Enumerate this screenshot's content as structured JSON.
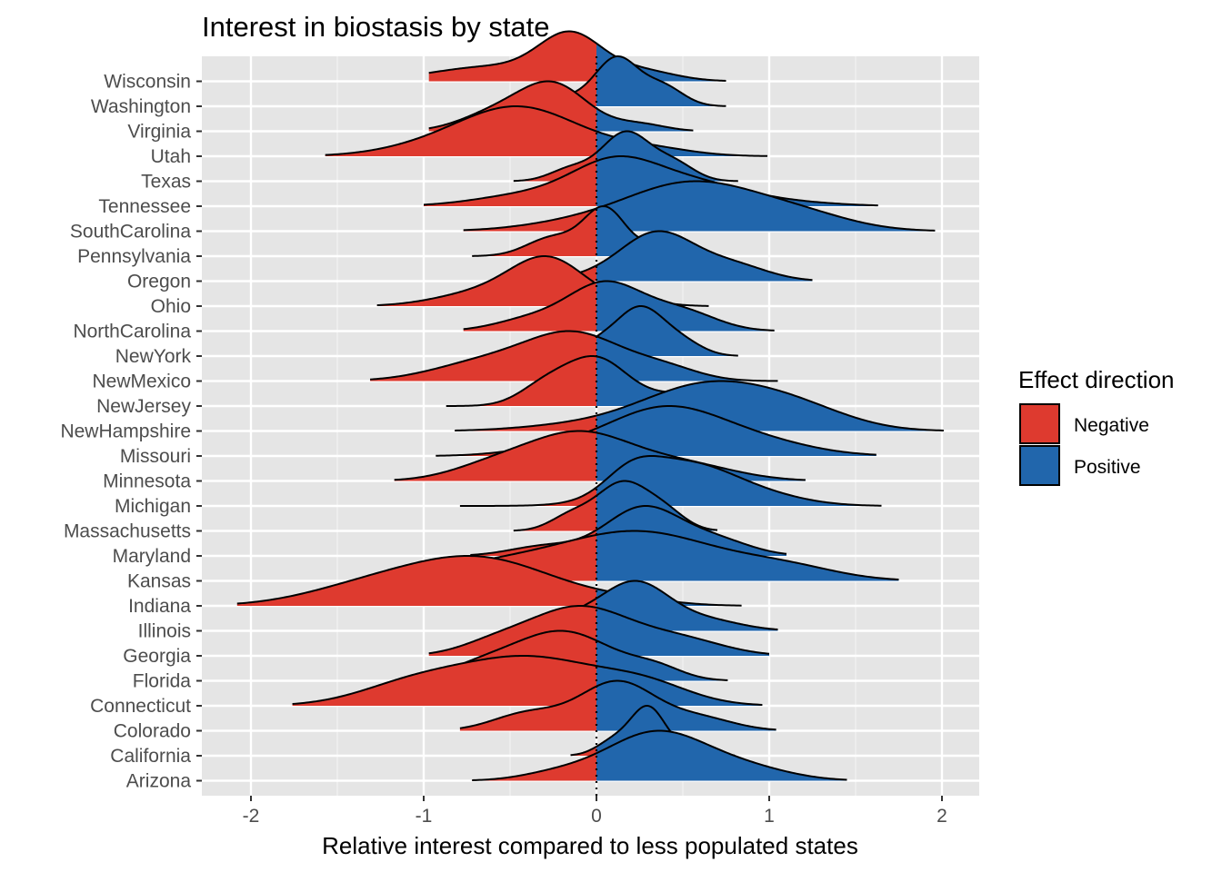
{
  "chart_data": {
    "type": "ridgeline",
    "title": "Interest in biostasis by state",
    "xlabel": "Relative interest compared to less populated states",
    "ylabel": "",
    "xlim": [
      -2.3,
      2.2
    ],
    "x_ticks": [
      -2,
      -1,
      0,
      1,
      2
    ],
    "x_tick_labels": [
      "-2",
      "-1",
      "0",
      "1",
      "2"
    ],
    "reference_line_x": 0,
    "grid": true,
    "legend": {
      "title": "Effect direction",
      "position": "right",
      "entries": [
        {
          "label": "Negative",
          "color": "#de3a2f"
        },
        {
          "label": "Positive",
          "color": "#2166ac"
        }
      ]
    },
    "colors": {
      "negative": "#de3a2f",
      "positive": "#2166ac",
      "panel": "#e5e5e5",
      "grid": "#ffffff",
      "tick_text": "#4d4d4d"
    },
    "states": [
      {
        "name": "Wisconsin",
        "min": -0.97,
        "max": 0.75,
        "peaks": [
          [
            -0.6,
            0.35,
            0.35
          ],
          [
            -0.15,
            0.18,
            1.0
          ],
          [
            0.25,
            0.2,
            0.25
          ]
        ]
      },
      {
        "name": "Washington",
        "min": -0.5,
        "max": 0.75,
        "peaks": [
          [
            0.12,
            0.12,
            1.0
          ],
          [
            0.38,
            0.12,
            0.45
          ],
          [
            -0.15,
            0.2,
            0.2
          ]
        ]
      },
      {
        "name": "Virginia",
        "min": -0.97,
        "max": 0.56,
        "peaks": [
          [
            -0.25,
            0.2,
            1.0
          ],
          [
            -0.6,
            0.2,
            0.35
          ],
          [
            0.25,
            0.15,
            0.15
          ]
        ]
      },
      {
        "name": "Utah",
        "min": -1.57,
        "max": 0.99,
        "peaks": [
          [
            -0.45,
            0.35,
            1.0
          ],
          [
            -1.0,
            0.3,
            0.12
          ],
          [
            0.3,
            0.25,
            0.15
          ]
        ]
      },
      {
        "name": "Texas",
        "min": -0.48,
        "max": 0.82,
        "peaks": [
          [
            0.17,
            0.14,
            1.0
          ],
          [
            0.45,
            0.12,
            0.35
          ],
          [
            -0.15,
            0.12,
            0.25
          ]
        ]
      },
      {
        "name": "Tennessee",
        "min": -1.0,
        "max": 1.63,
        "peaks": [
          [
            0.1,
            0.25,
            0.9
          ],
          [
            0.55,
            0.3,
            0.5
          ],
          [
            -0.4,
            0.3,
            0.25
          ],
          [
            1.1,
            0.3,
            0.08
          ]
        ]
      },
      {
        "name": "SouthCarolina",
        "min": -0.77,
        "max": 1.96,
        "peaks": [
          [
            0.55,
            0.4,
            1.0
          ],
          [
            1.2,
            0.3,
            0.25
          ],
          [
            -0.2,
            0.3,
            0.1
          ]
        ]
      },
      {
        "name": "Pennsylvania",
        "min": -0.72,
        "max": 0.7,
        "peaks": [
          [
            0.05,
            0.12,
            1.0
          ],
          [
            -0.25,
            0.15,
            0.4
          ],
          [
            0.4,
            0.12,
            0.3
          ]
        ]
      },
      {
        "name": "Oregon",
        "min": -0.45,
        "max": 1.25,
        "peaks": [
          [
            0.35,
            0.22,
            1.0
          ],
          [
            0.8,
            0.2,
            0.3
          ],
          [
            -0.1,
            0.15,
            0.05
          ]
        ]
      },
      {
        "name": "Ohio",
        "min": -1.27,
        "max": 0.65,
        "peaks": [
          [
            -0.28,
            0.22,
            1.0
          ],
          [
            -0.7,
            0.25,
            0.25
          ],
          [
            0.25,
            0.15,
            0.1
          ]
        ]
      },
      {
        "name": "NorthCarolina",
        "min": -0.77,
        "max": 1.03,
        "peaks": [
          [
            0.05,
            0.22,
            0.9
          ],
          [
            0.5,
            0.2,
            0.35
          ],
          [
            -0.4,
            0.2,
            0.2
          ]
        ]
      },
      {
        "name": "NewYork",
        "min": -0.32,
        "max": 0.82,
        "peaks": [
          [
            0.25,
            0.14,
            1.0
          ],
          [
            0.5,
            0.12,
            0.25
          ],
          [
            0.0,
            0.1,
            0.2
          ]
        ]
      },
      {
        "name": "NewMexico",
        "min": -1.31,
        "max": 1.05,
        "peaks": [
          [
            -0.12,
            0.28,
            1.0
          ],
          [
            -0.65,
            0.3,
            0.4
          ],
          [
            0.4,
            0.2,
            0.25
          ]
        ]
      },
      {
        "name": "NewJersey",
        "min": -0.87,
        "max": 0.98,
        "peaks": [
          [
            0.0,
            0.18,
            1.0
          ],
          [
            -0.3,
            0.15,
            0.4
          ],
          [
            0.5,
            0.2,
            0.25
          ]
        ]
      },
      {
        "name": "NewHampshire",
        "min": -0.82,
        "max": 2.01,
        "peaks": [
          [
            0.65,
            0.4,
            1.0
          ],
          [
            1.2,
            0.3,
            0.3
          ],
          [
            -0.2,
            0.3,
            0.08
          ]
        ]
      },
      {
        "name": "Missouri",
        "min": -0.93,
        "max": 1.62,
        "peaks": [
          [
            0.4,
            0.35,
            1.0
          ],
          [
            1.0,
            0.3,
            0.2
          ],
          [
            -0.3,
            0.25,
            0.1
          ]
        ]
      },
      {
        "name": "Minnesota",
        "min": -1.17,
        "max": 1.21,
        "peaks": [
          [
            -0.1,
            0.3,
            1.0
          ],
          [
            -0.6,
            0.25,
            0.3
          ],
          [
            0.5,
            0.3,
            0.35
          ]
        ]
      },
      {
        "name": "Michigan",
        "min": -0.79,
        "max": 1.65,
        "peaks": [
          [
            0.5,
            0.3,
            1.0
          ],
          [
            0.2,
            0.15,
            0.45
          ],
          [
            1.0,
            0.25,
            0.15
          ]
        ]
      },
      {
        "name": "Massachusetts",
        "min": -0.48,
        "max": 0.7,
        "peaks": [
          [
            0.15,
            0.15,
            1.0
          ],
          [
            0.4,
            0.12,
            0.35
          ],
          [
            -0.15,
            0.12,
            0.3
          ]
        ]
      },
      {
        "name": "Maryland",
        "min": -0.73,
        "max": 1.1,
        "peaks": [
          [
            0.27,
            0.22,
            1.0
          ],
          [
            0.7,
            0.2,
            0.3
          ],
          [
            -0.3,
            0.2,
            0.2
          ]
        ]
      },
      {
        "name": "Kansas",
        "min": -1.22,
        "max": 1.75,
        "peaks": [
          [
            0.25,
            0.45,
            1.0
          ],
          [
            -0.6,
            0.4,
            0.3
          ],
          [
            1.1,
            0.3,
            0.25
          ]
        ]
      },
      {
        "name": "Indiana",
        "min": -2.08,
        "max": 0.84,
        "peaks": [
          [
            -0.7,
            0.45,
            1.0
          ],
          [
            -1.4,
            0.35,
            0.25
          ],
          [
            0.2,
            0.25,
            0.08
          ]
        ]
      },
      {
        "name": "Illinois",
        "min": -0.48,
        "max": 1.05,
        "peaks": [
          [
            0.22,
            0.2,
            1.0
          ],
          [
            0.65,
            0.2,
            0.2
          ],
          [
            -0.15,
            0.15,
            0.2
          ]
        ]
      },
      {
        "name": "Georgia",
        "min": -0.97,
        "max": 1.0,
        "peaks": [
          [
            -0.1,
            0.3,
            1.0
          ],
          [
            0.5,
            0.25,
            0.3
          ],
          [
            -0.6,
            0.2,
            0.2
          ]
        ]
      },
      {
        "name": "Florida",
        "min": -1.08,
        "max": 0.76,
        "peaks": [
          [
            -0.2,
            0.3,
            1.0
          ],
          [
            -0.7,
            0.2,
            0.2
          ],
          [
            0.35,
            0.15,
            0.2
          ]
        ]
      },
      {
        "name": "Connecticut",
        "min": -1.76,
        "max": 0.96,
        "peaks": [
          [
            -0.4,
            0.45,
            1.0
          ],
          [
            -1.1,
            0.3,
            0.3
          ],
          [
            0.3,
            0.25,
            0.3
          ]
        ]
      },
      {
        "name": "Colorado",
        "min": -0.79,
        "max": 1.04,
        "peaks": [
          [
            0.12,
            0.22,
            1.0
          ],
          [
            -0.4,
            0.2,
            0.35
          ],
          [
            0.6,
            0.2,
            0.25
          ]
        ]
      },
      {
        "name": "California",
        "min": -0.15,
        "max": 0.8,
        "peaks": [
          [
            0.3,
            0.1,
            1.0
          ],
          [
            0.1,
            0.1,
            0.3
          ],
          [
            0.55,
            0.1,
            0.15
          ]
        ]
      },
      {
        "name": "Arizona",
        "min": -0.72,
        "max": 1.45,
        "peaks": [
          [
            0.35,
            0.3,
            1.0
          ],
          [
            0.9,
            0.25,
            0.2
          ],
          [
            -0.25,
            0.2,
            0.12
          ]
        ]
      }
    ]
  }
}
